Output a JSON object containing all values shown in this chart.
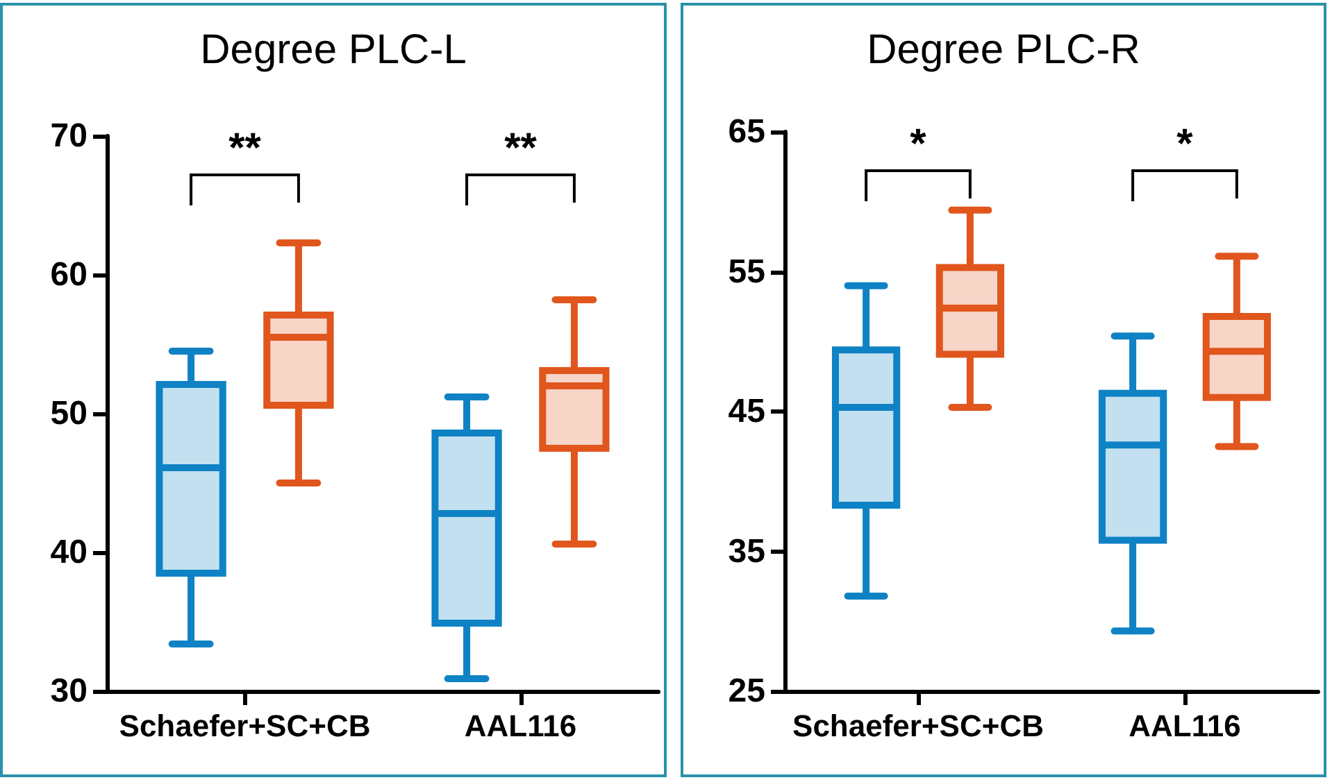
{
  "chart_data": [
    {
      "type": "box",
      "title": "Degree PLC-L",
      "categories": [
        "Schaefer+SC+CB",
        "AAL116"
      ],
      "ylim": [
        30,
        70
      ],
      "yticks": [
        30,
        40,
        50,
        60,
        70
      ],
      "annotations": [
        "**",
        "**"
      ],
      "series": [
        {
          "color": "#0e82c4",
          "boxes": [
            {
              "low": 33.4,
              "q1": 38.5,
              "median": 46.1,
              "q3": 52.1,
              "high": 54.5
            },
            {
              "low": 30.9,
              "q1": 34.9,
              "median": 42.8,
              "q3": 48.6,
              "high": 51.2
            }
          ]
        },
        {
          "color": "#e0561d",
          "boxes": [
            {
              "low": 45.0,
              "q1": 50.6,
              "median": 55.5,
              "q3": 57.1,
              "high": 62.3
            },
            {
              "low": 40.6,
              "q1": 47.5,
              "median": 52.0,
              "q3": 53.1,
              "high": 58.2
            }
          ]
        }
      ]
    },
    {
      "type": "box",
      "title": "Degree PLC-R",
      "categories": [
        "Schaefer+SC+CB",
        "AAL116"
      ],
      "ylim": [
        25,
        65
      ],
      "yticks": [
        25,
        35,
        45,
        55,
        65
      ],
      "annotations": [
        "*",
        "*"
      ],
      "series": [
        {
          "color": "#0e82c4",
          "boxes": [
            {
              "low": 31.8,
              "q1": 38.3,
              "median": 45.3,
              "q3": 49.4,
              "high": 54.0
            },
            {
              "low": 29.3,
              "q1": 35.8,
              "median": 42.6,
              "q3": 46.3,
              "high": 50.4
            }
          ]
        },
        {
          "color": "#e0561d",
          "boxes": [
            {
              "low": 45.3,
              "q1": 49.1,
              "median": 52.4,
              "q3": 55.3,
              "high": 59.4
            },
            {
              "low": 42.5,
              "q1": 46.0,
              "median": 49.3,
              "q3": 51.8,
              "high": 56.1
            }
          ]
        }
      ]
    }
  ]
}
